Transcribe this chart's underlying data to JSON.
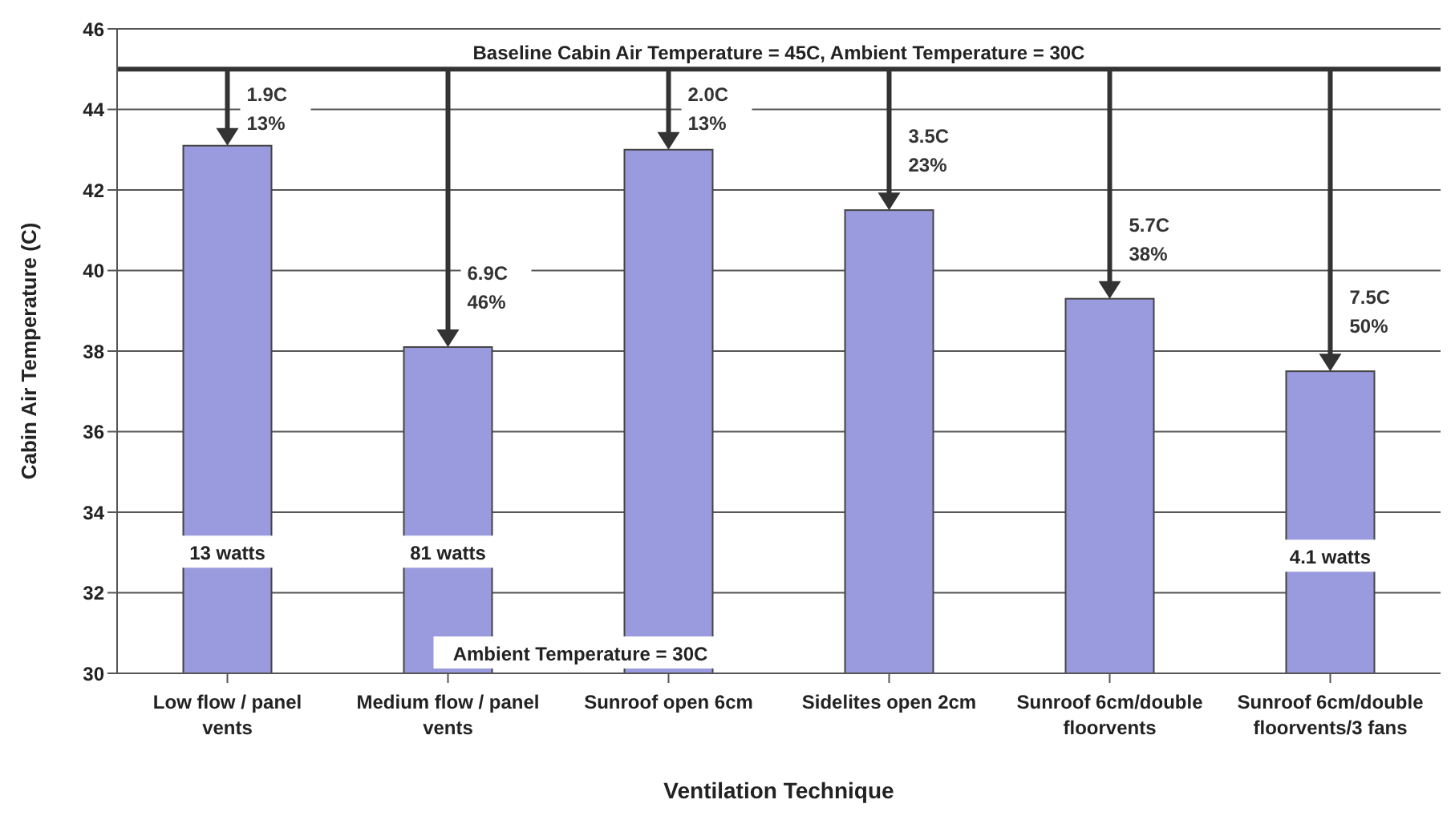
{
  "chart_data": {
    "type": "bar",
    "xlabel": "Ventilation Technique",
    "ylabel": "Cabin Air Temperature (C)",
    "categories": [
      "Low flow / panel vents",
      "Medium flow / panel vents",
      "Sunroof open 6cm",
      "Sidelites open 2cm",
      "Sunroof 6cm/double floorvents",
      "Sunroof 6cm/double floorvents/3 fans"
    ],
    "values": [
      43.1,
      38.1,
      43.0,
      41.5,
      39.3,
      37.5
    ],
    "color": "#9a9ade",
    "ylim": [
      30,
      46
    ],
    "yticks": [
      30,
      32,
      34,
      36,
      38,
      40,
      42,
      44,
      46
    ],
    "grid": "y",
    "ref_lines": [
      {
        "axis": "y",
        "value": 45,
        "label": "Baseline Cabin Air Temperature = 45C, Ambient Temperature = 30C",
        "color": "#333333"
      }
    ],
    "annotations": [
      {
        "text": "1.9C\n13%",
        "x": "Low flow / panel vents",
        "y": 43.1
      },
      {
        "text": "6.9C\n46%",
        "x": "Medium flow / panel vents",
        "y": 38.1
      },
      {
        "text": "2.0C\n13%",
        "x": "Sunroof open 6cm",
        "y": 43.0
      },
      {
        "text": "3.5C\n23%",
        "x": "Sidelites open 2cm",
        "y": 41.5
      },
      {
        "text": "5.7C\n38%",
        "x": "Sunroof 6cm/double floorvents",
        "y": 39.3
      },
      {
        "text": "7.5C\n50%",
        "x": "Sunroof 6cm/double floorvents/3 fans",
        "y": 37.5
      },
      "13 watts",
      "81 watts",
      "4.1 watts",
      "Ambient Temperature = 30C"
    ]
  }
}
